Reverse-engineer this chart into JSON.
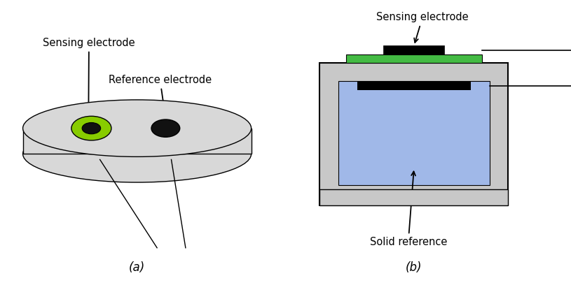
{
  "fig_width": 8.15,
  "fig_height": 4.08,
  "bg_color": "#ffffff",
  "label_a": "(a)",
  "label_b": "(b)",
  "sensing_electrode_label": "Sensing electrode",
  "reference_electrode_label": "Reference electrode",
  "solid_reference_label": "Solid reference",
  "disk_color": "#d8d8d8",
  "disk_edge_color": "#000000",
  "green_ring_color": "#88cc00",
  "black_dot_color": "#111111",
  "gray_box_color": "#c8c8c8",
  "blue_fill_color": "#a0b8e8",
  "green_strip_color": "#44bb44",
  "label_fontsize": 12,
  "annot_fontsize": 10.5
}
